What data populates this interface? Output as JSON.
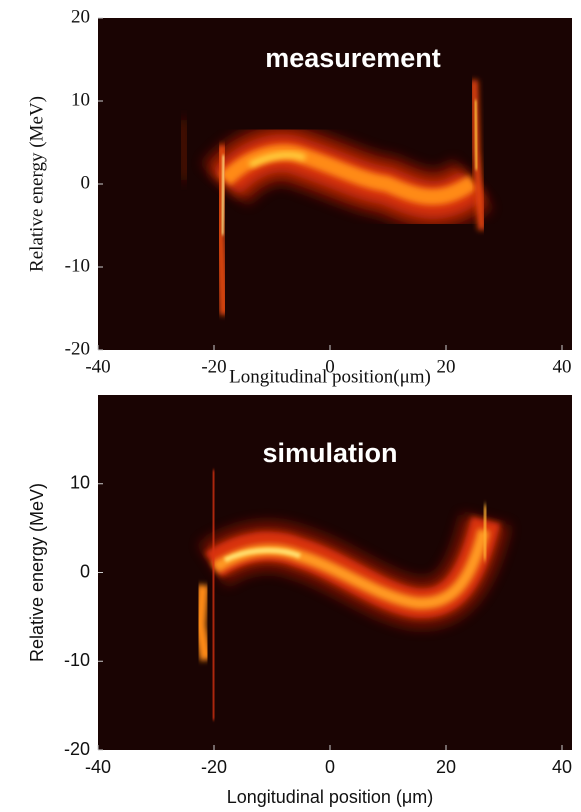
{
  "chart_data": [
    {
      "type": "heatmap",
      "annotation": "measurement",
      "xlabel": "Longitudinal position(μm)",
      "ylabel": "Relative energy (MeV)",
      "xlim": [
        -40,
        40
      ],
      "ylim": [
        -20,
        20
      ],
      "xticks": [
        -40,
        -20,
        0,
        20,
        40
      ],
      "yticks": [
        -20,
        -10,
        0,
        10,
        20
      ]
    },
    {
      "type": "heatmap",
      "annotation": "simulation",
      "xlabel": "Longitudinal position (μm)",
      "ylabel": "Relative energy (MeV)",
      "xlim": [
        -40,
        40
      ],
      "ylim": [
        -20,
        20
      ],
      "xticks": [
        -40,
        -20,
        0,
        20,
        40
      ],
      "yticks": [
        -20,
        -10,
        0,
        10
      ]
    }
  ]
}
